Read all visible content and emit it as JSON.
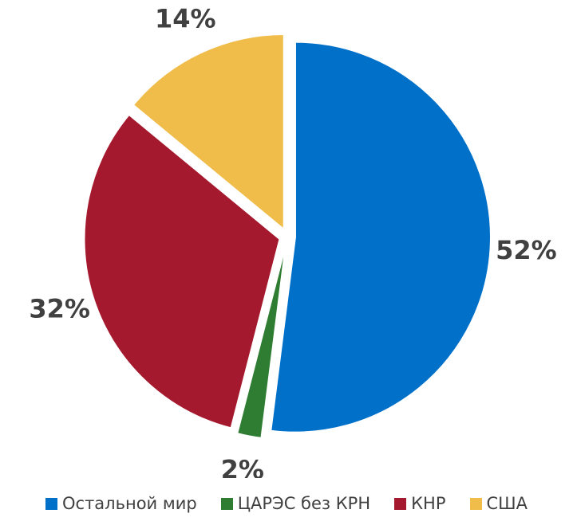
{
  "chart_data": {
    "type": "pie",
    "start_angle_deg": 0,
    "direction": "clockwise",
    "exploded": true,
    "title": "",
    "slices": [
      {
        "label": "Остальной мир",
        "value": 52,
        "display": "52%",
        "color": "#0070C9"
      },
      {
        "label": "ЦАРЭС без КРН",
        "value": 2,
        "display": "2%",
        "color": "#2E7D32"
      },
      {
        "label": "КНР",
        "value": 32,
        "display": "32%",
        "color": "#A5192E"
      },
      {
        "label": "США",
        "value": 14,
        "display": "14%",
        "color": "#F0BC4A"
      }
    ],
    "legend": {
      "position": "bottom",
      "items": [
        "Остальной мир",
        "ЦАРЭС без КРН",
        "КНР",
        "США"
      ]
    }
  }
}
